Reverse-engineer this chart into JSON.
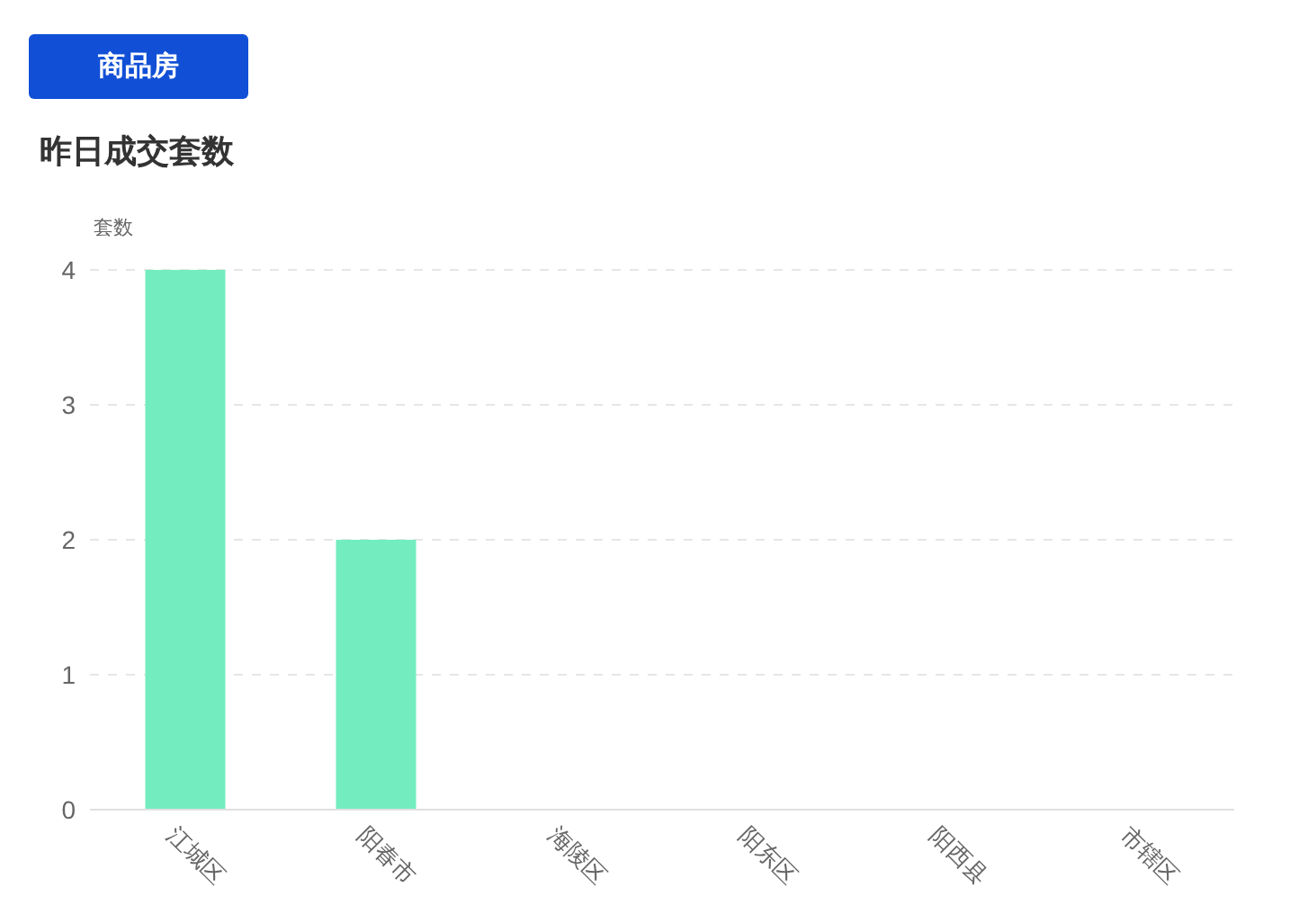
{
  "chart_data": {
    "type": "bar",
    "title": "昨日成交套数",
    "ylabel": "套数",
    "categories": [
      "江城区",
      "阳春市",
      "海陵区",
      "阳东区",
      "阳西县",
      "市辖区"
    ],
    "values": [
      4,
      2,
      0,
      0,
      0,
      0
    ],
    "color": "#73edbf",
    "ylim": [
      0,
      4
    ],
    "yticks": [
      0,
      1,
      2,
      3,
      4
    ],
    "grid": "y",
    "annotations": [
      "商品房"
    ]
  }
}
